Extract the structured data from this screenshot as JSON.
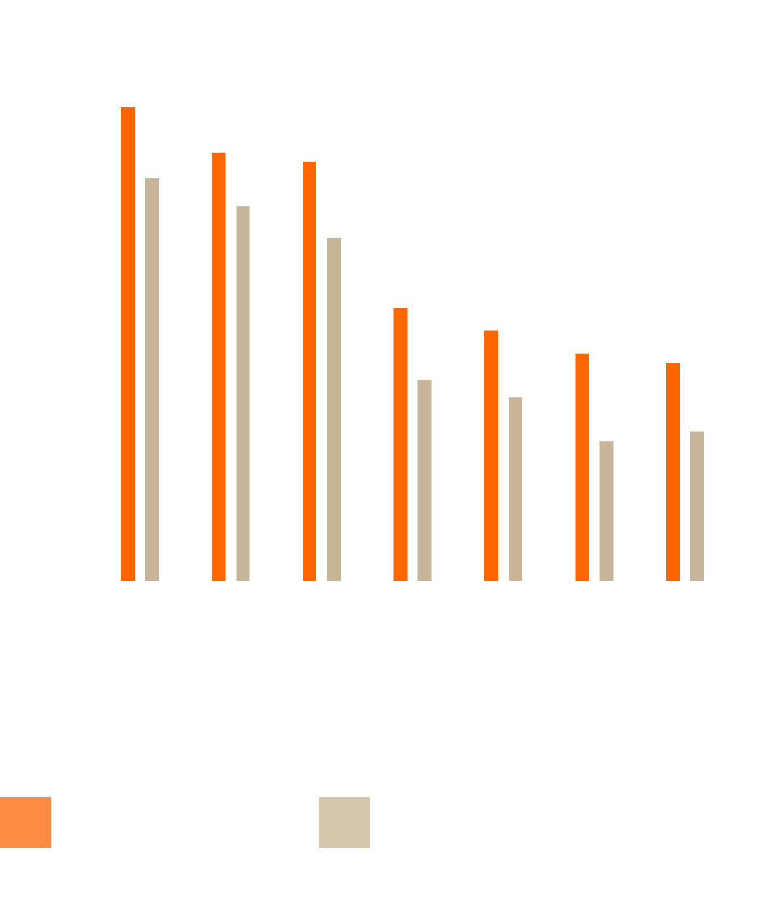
{
  "chart_data": {
    "type": "bar",
    "title": "",
    "xlabel": "",
    "ylabel": "",
    "categories": [
      "",
      "",
      "",
      "",
      "",
      "",
      ""
    ],
    "ylim": [
      0,
      100
    ],
    "grid": false,
    "legend_position": "bottom-left",
    "series": [
      {
        "color": "#ff6600",
        "legend_swatch_color": "#ff8c42",
        "values": [
          100,
          90.5,
          88.6,
          57.6,
          52.9,
          48.1,
          46.1
        ]
      },
      {
        "color": "#c8b599",
        "legend_swatch_color": "#d5c6ae",
        "values": [
          85,
          79.2,
          72.4,
          42.6,
          38.8,
          29.6,
          31.6
        ]
      }
    ]
  }
}
